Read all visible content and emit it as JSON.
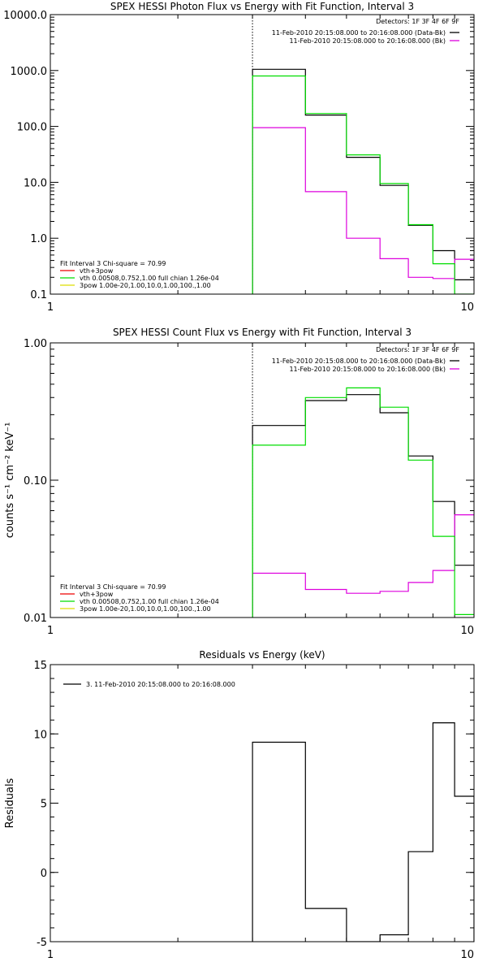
{
  "chart_data": [
    {
      "type": "line",
      "title": "SPEX HESSI Photon Flux vs Energy with Fit Function, Interval 3",
      "xlabel": "",
      "ylabel": "",
      "x_scale": "log",
      "y_scale": "log",
      "xlim": [
        1,
        10
      ],
      "ylim": [
        0.1,
        10000.0
      ],
      "x_ticks": [
        1,
        10
      ],
      "x_tick_labels": [
        "1",
        "10"
      ],
      "y_ticks": [
        0.1,
        1.0,
        10.0,
        100.0,
        1000.0,
        10000.0
      ],
      "y_tick_labels": [
        "0.1",
        "1.0",
        "10.0",
        "100.0",
        "1000.0",
        "10000.0"
      ],
      "vline_x": 3.0,
      "detectors": "Detectors: 1F 3F 4F 6F 9F",
      "legend_top": [
        {
          "label": "11-Feb-2010 20:15:08.000 to 20:16:08.000 (Data-Bk)",
          "color": "#000000"
        },
        {
          "label": "11-Feb-2010 20:15:08.000 to 20:16:08.000 (Bk)",
          "color": "#dd00dd"
        }
      ],
      "legend_fit": [
        {
          "label": "Fit Interval 3   Chi-square = 70.99",
          "color": ""
        },
        {
          "label": "vth+3pow",
          "color": "#ee0000"
        },
        {
          "label": "vth 0.00508,0.752,1.00  full chian 1.26e-04",
          "color": "#00dd00"
        },
        {
          "label": "3pow 1.00e-20,1.00,10.0,1.00,100.,1.00",
          "color": "#dddd00"
        }
      ],
      "bin_edges": [
        3.0,
        4.0,
        5.0,
        6.0,
        7.0,
        8.0,
        9.0,
        10.0
      ],
      "series": [
        {
          "name": "Data-Bk",
          "color": "#000000",
          "values": [
            1050,
            160,
            28,
            8.8,
            1.7,
            0.6,
            0.18
          ]
        },
        {
          "name": "Bk",
          "color": "#dd00dd",
          "values": [
            95,
            6.8,
            1.0,
            0.43,
            0.2,
            0.19,
            0.42
          ]
        },
        {
          "name": "vth+3pow",
          "color": "#00dd00",
          "values": [
            800,
            170,
            31,
            9.5,
            1.75,
            0.35,
            0.08
          ]
        }
      ]
    },
    {
      "type": "line",
      "title": "SPEX HESSI Count Flux vs Energy with Fit Function, Interval 3",
      "xlabel": "",
      "ylabel": "counts s⁻¹ cm⁻² keV⁻¹",
      "x_scale": "log",
      "y_scale": "log",
      "xlim": [
        1,
        10
      ],
      "ylim": [
        0.01,
        1.0
      ],
      "x_ticks": [
        1,
        10
      ],
      "x_tick_labels": [
        "1",
        "10"
      ],
      "y_ticks": [
        0.01,
        0.1,
        1.0
      ],
      "y_tick_labels": [
        "0.01",
        "0.10",
        "1.00"
      ],
      "vline_x": 3.0,
      "detectors": "Detectors: 1F 3F 4F 6F 9F",
      "legend_top": [
        {
          "label": "11-Feb-2010 20:15:08.000 to 20:16:08.000 (Data-Bk)",
          "color": "#000000"
        },
        {
          "label": "11-Feb-2010 20:15:08.000 to 20:16:08.000 (Bk)",
          "color": "#dd00dd"
        }
      ],
      "legend_fit": [
        {
          "label": "Fit Interval 3   Chi-square = 70.99",
          "color": ""
        },
        {
          "label": "vth+3pow",
          "color": "#ee0000"
        },
        {
          "label": "vth 0.00508,0.752,1.00  full chian 1.26e-04",
          "color": "#00dd00"
        },
        {
          "label": "3pow 1.00e-20,1.00,10.0,1.00,100.,1.00",
          "color": "#dddd00"
        }
      ],
      "bin_edges": [
        3.0,
        4.0,
        5.0,
        6.0,
        7.0,
        8.0,
        9.0,
        10.0
      ],
      "series": [
        {
          "name": "Data-Bk",
          "color": "#000000",
          "values": [
            0.25,
            0.38,
            0.42,
            0.31,
            0.15,
            0.07,
            0.024
          ]
        },
        {
          "name": "Bk",
          "color": "#dd00dd",
          "values": [
            0.021,
            0.016,
            0.015,
            0.0155,
            0.018,
            0.022,
            0.056
          ]
        },
        {
          "name": "vth+3pow",
          "color": "#00dd00",
          "values": [
            0.18,
            0.4,
            0.47,
            0.34,
            0.14,
            0.039,
            0.0105
          ]
        }
      ]
    },
    {
      "type": "line",
      "title": "Residuals vs Energy (keV)",
      "xlabel": "",
      "ylabel": "Residuals",
      "x_scale": "log",
      "y_scale": "linear",
      "xlim": [
        1,
        10
      ],
      "ylim": [
        -5,
        15
      ],
      "x_ticks": [
        1,
        10
      ],
      "x_tick_labels": [
        "1",
        "10"
      ],
      "y_ticks": [
        -5,
        0,
        5,
        10,
        15
      ],
      "y_tick_labels": [
        "-5",
        "0",
        "5",
        "10",
        "15"
      ],
      "legend_top": [
        {
          "label": "3. 11-Feb-2010 20:15:08.000 to 20:16:08.000",
          "color": "#000000"
        }
      ],
      "bin_edges": [
        3.0,
        4.0,
        5.0,
        6.0,
        7.0,
        8.0,
        9.0,
        10.0
      ],
      "series": [
        {
          "name": "3. 11-Feb-2010 20:15:08.000 to 20:16:08.000",
          "color": "#000000",
          "values": [
            9.4,
            -2.6,
            -5.0,
            -4.5,
            1.5,
            10.8,
            5.5
          ]
        }
      ]
    }
  ]
}
